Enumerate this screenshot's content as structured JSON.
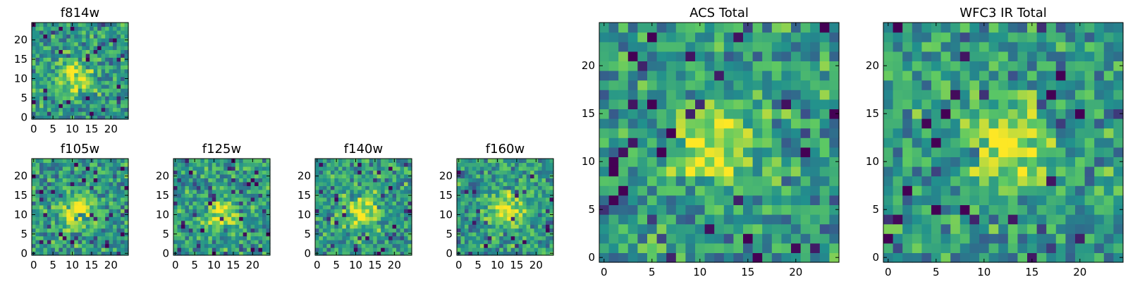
{
  "figure": {
    "colormap": [
      "#440154",
      "#3b528b",
      "#21908d",
      "#5dc963",
      "#fde725"
    ]
  },
  "chart_data": [
    {
      "type": "heatmap",
      "title": "f814w",
      "grid_size": 25,
      "source_peak": [
        10.5,
        11
      ],
      "source_strength": 0.45,
      "seed": 11,
      "x_ticks": [
        0,
        5,
        10,
        15,
        20
      ],
      "y_ticks": [
        0,
        5,
        10,
        15,
        20
      ]
    },
    {
      "type": "heatmap",
      "title": "f105w",
      "grid_size": 25,
      "source_peak": [
        11.5,
        11
      ],
      "source_strength": 0.5,
      "seed": 23,
      "x_ticks": [
        0,
        5,
        10,
        15,
        20
      ],
      "y_ticks": [
        0,
        5,
        10,
        15,
        20
      ]
    },
    {
      "type": "heatmap",
      "title": "f125w",
      "grid_size": 25,
      "source_peak": [
        12,
        10
      ],
      "source_strength": 0.35,
      "seed": 37,
      "x_ticks": [
        0,
        5,
        10,
        15,
        20
      ],
      "y_ticks": [
        0,
        5,
        10,
        15,
        20
      ]
    },
    {
      "type": "heatmap",
      "title": "f140w",
      "grid_size": 25,
      "source_peak": [
        12,
        11
      ],
      "source_strength": 0.4,
      "seed": 41,
      "x_ticks": [
        0,
        5,
        10,
        15,
        20
      ],
      "y_ticks": [
        0,
        5,
        10,
        15,
        20
      ]
    },
    {
      "type": "heatmap",
      "title": "f160w",
      "grid_size": 25,
      "source_peak": [
        12.5,
        11
      ],
      "source_strength": 0.45,
      "seed": 53,
      "x_ticks": [
        0,
        5,
        10,
        15,
        20
      ],
      "y_ticks": [
        0,
        5,
        10,
        15,
        20
      ]
    },
    {
      "type": "heatmap",
      "title": "ACS Total",
      "grid_size": 25,
      "source_peak": [
        11.5,
        12
      ],
      "source_strength": 0.45,
      "seed": 67,
      "x_ticks": [
        0,
        5,
        10,
        15,
        20
      ],
      "y_ticks": [
        0,
        5,
        10,
        15,
        20
      ]
    },
    {
      "type": "heatmap",
      "title": "WFC3 IR Total",
      "grid_size": 25,
      "source_peak": [
        12.5,
        11.5
      ],
      "source_strength": 0.4,
      "seed": 79,
      "x_ticks": [
        0,
        5,
        10,
        15,
        20
      ],
      "y_ticks": [
        0,
        5,
        10,
        15,
        20
      ]
    }
  ]
}
